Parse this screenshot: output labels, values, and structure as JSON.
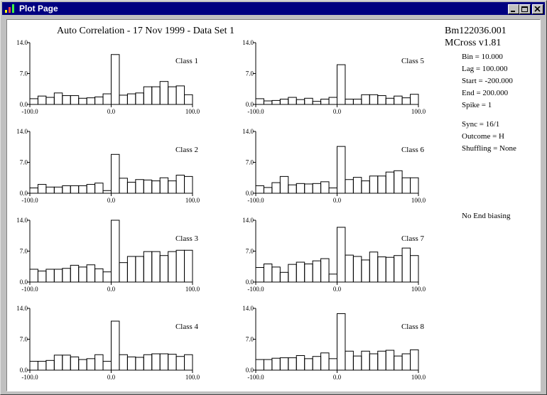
{
  "window": {
    "title": "Plot Page"
  },
  "header": {
    "title": "Auto Correlation - 17 Nov 1999  -  Data Set 1",
    "file": "Bm122036.001",
    "version": "MCross v1.81"
  },
  "params": {
    "group1": [
      "Bin = 10.000",
      "Lag = 100.000",
      "Start = -200.000",
      "End = 200.000",
      "Spike = 1"
    ],
    "group2": [
      "Sync = 16/1",
      "Outcome = H",
      "Shuffling = None"
    ],
    "group3": [
      "No End biasing"
    ]
  },
  "chart_data": [
    {
      "type": "bar",
      "title": "Class 1",
      "x": [
        -95,
        -85,
        -75,
        -65,
        -55,
        -45,
        -35,
        -25,
        -15,
        -5,
        5,
        15,
        25,
        35,
        45,
        55,
        65,
        75,
        85,
        95
      ],
      "values": [
        1.3,
        1.9,
        1.6,
        2.6,
        2.0,
        2.0,
        1.4,
        1.5,
        1.7,
        2.4,
        11.3,
        2.1,
        2.4,
        2.6,
        4.0,
        4.0,
        5.2,
        4.0,
        4.2,
        2.2
      ],
      "xlim": [
        -100,
        100
      ],
      "ylim": [
        0,
        14
      ],
      "xticks": [
        "-100.0",
        "0.0",
        "100.0"
      ],
      "yticks": [
        "0.0",
        "7.0",
        "14.0"
      ]
    },
    {
      "type": "bar",
      "title": "Class 2",
      "x": [
        -95,
        -85,
        -75,
        -65,
        -55,
        -45,
        -35,
        -25,
        -15,
        -5,
        5,
        15,
        25,
        35,
        45,
        55,
        65,
        75,
        85,
        95
      ],
      "values": [
        1.2,
        2.0,
        1.4,
        1.4,
        1.7,
        1.7,
        1.7,
        2.0,
        2.3,
        0.6,
        8.8,
        3.4,
        2.5,
        3.1,
        3.0,
        2.8,
        3.5,
        2.8,
        4.1,
        3.8
      ],
      "xlim": [
        -100,
        100
      ],
      "ylim": [
        0,
        14
      ],
      "xticks": [
        "-100.0",
        "0.0",
        "100.0"
      ],
      "yticks": [
        "0.0",
        "7.0",
        "14.0"
      ]
    },
    {
      "type": "bar",
      "title": "Class 3",
      "x": [
        -95,
        -85,
        -75,
        -65,
        -55,
        -45,
        -35,
        -25,
        -15,
        -5,
        5,
        15,
        25,
        35,
        45,
        55,
        65,
        75,
        85,
        95
      ],
      "values": [
        2.9,
        2.5,
        2.9,
        2.9,
        3.1,
        3.8,
        3.4,
        3.9,
        3.0,
        2.3,
        14.0,
        4.4,
        5.8,
        5.8,
        6.9,
        6.9,
        6.0,
        6.9,
        7.2,
        7.2
      ],
      "xlim": [
        -100,
        100
      ],
      "ylim": [
        0,
        14
      ],
      "xticks": [
        "-100.0",
        "0.0",
        "100.0"
      ],
      "yticks": [
        "0.0",
        "7.0",
        "14.0"
      ]
    },
    {
      "type": "bar",
      "title": "Class 4",
      "x": [
        -95,
        -85,
        -75,
        -65,
        -55,
        -45,
        -35,
        -25,
        -15,
        -5,
        5,
        15,
        25,
        35,
        45,
        55,
        65,
        75,
        85,
        95
      ],
      "values": [
        2.0,
        2.0,
        2.2,
        3.4,
        3.4,
        3.0,
        2.4,
        2.6,
        3.5,
        2.0,
        11.1,
        3.5,
        3.0,
        2.9,
        3.5,
        3.7,
        3.7,
        3.6,
        3.1,
        3.5
      ],
      "xlim": [
        -100,
        100
      ],
      "ylim": [
        0,
        14
      ],
      "xticks": [
        "-100.0",
        "0.0",
        "100.0"
      ],
      "yticks": [
        "0.0",
        "7.0",
        "14.0"
      ]
    },
    {
      "type": "bar",
      "title": "Class 5",
      "x": [
        -95,
        -85,
        -75,
        -65,
        -55,
        -45,
        -35,
        -25,
        -15,
        -5,
        5,
        15,
        25,
        35,
        45,
        55,
        65,
        75,
        85,
        95
      ],
      "values": [
        1.3,
        0.8,
        0.9,
        1.2,
        1.6,
        1.1,
        1.4,
        0.7,
        1.2,
        1.6,
        9.0,
        1.2,
        1.2,
        2.2,
        2.2,
        2.0,
        1.4,
        1.9,
        1.5,
        2.3
      ],
      "xlim": [
        -100,
        100
      ],
      "ylim": [
        0,
        14
      ],
      "xticks": [
        "-100.0",
        "0.0",
        "100.0"
      ],
      "yticks": [
        "0.0",
        "7.0",
        "14.0"
      ]
    },
    {
      "type": "bar",
      "title": "Class 6",
      "x": [
        -95,
        -85,
        -75,
        -65,
        -55,
        -45,
        -35,
        -25,
        -15,
        -5,
        5,
        15,
        25,
        35,
        45,
        55,
        65,
        75,
        85,
        95
      ],
      "values": [
        1.7,
        1.3,
        2.4,
        3.8,
        1.9,
        2.2,
        2.1,
        2.2,
        2.6,
        1.2,
        10.6,
        3.1,
        3.6,
        2.8,
        3.9,
        3.9,
        4.8,
        5.1,
        3.5,
        3.5
      ],
      "xlim": [
        -100,
        100
      ],
      "ylim": [
        0,
        14
      ],
      "xticks": [
        "-100.0",
        "0.0",
        "100.0"
      ],
      "yticks": [
        "0.0",
        "7.0",
        "14.0"
      ]
    },
    {
      "type": "bar",
      "title": "Class 7",
      "x": [
        -95,
        -85,
        -75,
        -65,
        -55,
        -45,
        -35,
        -25,
        -15,
        -5,
        5,
        15,
        25,
        35,
        45,
        55,
        65,
        75,
        85,
        95
      ],
      "values": [
        3.3,
        4.1,
        3.4,
        2.2,
        4.0,
        4.5,
        4.1,
        4.8,
        5.3,
        1.8,
        12.4,
        6.1,
        5.8,
        5.0,
        6.8,
        5.7,
        5.6,
        6.0,
        7.7,
        6.0
      ],
      "xlim": [
        -100,
        100
      ],
      "ylim": [
        0,
        14
      ],
      "xticks": [
        "-100.0",
        "0.0",
        "100.0"
      ],
      "yticks": [
        "0.0",
        "7.0",
        "14.0"
      ]
    },
    {
      "type": "bar",
      "title": "Class 8",
      "x": [
        -95,
        -85,
        -75,
        -65,
        -55,
        -45,
        -35,
        -25,
        -15,
        -5,
        5,
        15,
        25,
        35,
        45,
        55,
        65,
        75,
        85,
        95
      ],
      "values": [
        2.4,
        2.4,
        2.7,
        2.8,
        2.8,
        3.3,
        2.6,
        3.1,
        3.9,
        2.6,
        12.8,
        4.3,
        3.2,
        4.3,
        3.7,
        4.3,
        4.5,
        3.2,
        3.7,
        4.6
      ],
      "xlim": [
        -100,
        100
      ],
      "ylim": [
        0,
        14
      ],
      "xticks": [
        "-100.0",
        "0.0",
        "100.0"
      ],
      "yticks": [
        "0.0",
        "7.0",
        "14.0"
      ]
    }
  ]
}
